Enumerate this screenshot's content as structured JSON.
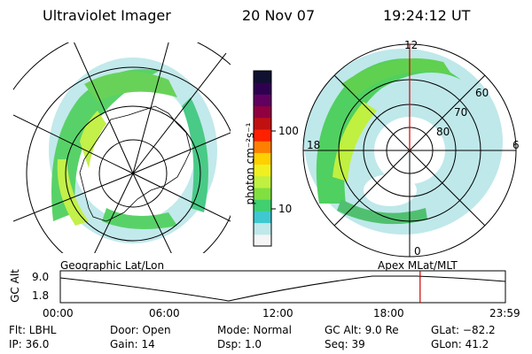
{
  "header": {
    "instrument": "Ultraviolet Imager",
    "date": "20 Nov 07",
    "time": "19:24:12 UT"
  },
  "left_map": {
    "projection_label": "Geographic Lat/Lon"
  },
  "right_map": {
    "projection_label": "Apex MLat/MLT",
    "mlt_labels": {
      "top": "12",
      "right": "6",
      "bottom": "0",
      "left": "18"
    },
    "lat_labels": [
      "60",
      "70",
      "80"
    ]
  },
  "colorbar": {
    "label": "photon cm⁻²s⁻¹",
    "ticks": [
      "100",
      "10"
    ],
    "scale": "log",
    "colors": [
      "#f5f5f5",
      "#bfe8ea",
      "#40c8d0",
      "#40d070",
      "#80e040",
      "#c0f040",
      "#f0f020",
      "#ffd000",
      "#ff8000",
      "#ff2000",
      "#c01010",
      "#900040",
      "#600060",
      "#300050",
      "#101030"
    ]
  },
  "timeline": {
    "axis_title": "GC Alt",
    "y_ticks": [
      "9.0",
      "1.8"
    ],
    "x_ticks": [
      "00:00",
      "06:00",
      "12:00",
      "18:00",
      "23:59"
    ],
    "current_time_hours": 19.4
  },
  "footer": {
    "filter": "Flt: LBHL",
    "ip": "IP: 36.0",
    "door": "Door: Open",
    "gain": "Gain: 14",
    "mode": "Mode: Normal",
    "dsp": "Dsp:    1.0",
    "gc_alt": "GC Alt: 9.0 Re",
    "seq": "Seq: 39",
    "glat": "GLat: −82.2",
    "glon": "GLon:  41.2"
  }
}
